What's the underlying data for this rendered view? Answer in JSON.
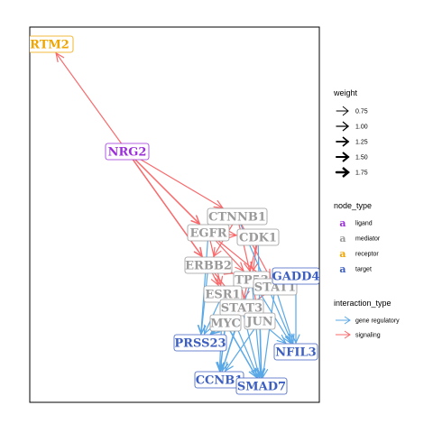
{
  "colors": {
    "ligand": "#9b30d9",
    "mediator": "#9a9a9a",
    "receptor": "#f0a500",
    "target": "#3d5fc0",
    "signaling": "#f8696b",
    "gene_regulatory": "#5aa8e6"
  },
  "nodes": [
    {
      "id": "RTM2",
      "label": "RTM2",
      "type": "receptor"
    },
    {
      "id": "NRG2",
      "label": "NRG2",
      "type": "ligand"
    },
    {
      "id": "CTNNB1",
      "label": "CTNNB1",
      "type": "mediator"
    },
    {
      "id": "EGFR",
      "label": "EGFR",
      "type": "mediator"
    },
    {
      "id": "CDK1",
      "label": "CDK1",
      "type": "mediator"
    },
    {
      "id": "ERBB2",
      "label": "ERBB2",
      "type": "mediator"
    },
    {
      "id": "TP53",
      "label": "TP53",
      "type": "mediator"
    },
    {
      "id": "STAT1",
      "label": "STAT1",
      "type": "mediator"
    },
    {
      "id": "GADD4",
      "label": "GADD4",
      "type": "target"
    },
    {
      "id": "ESR1",
      "label": "ESR1",
      "type": "mediator"
    },
    {
      "id": "STAT3",
      "label": "STAT3",
      "type": "mediator"
    },
    {
      "id": "MYC",
      "label": "MYC",
      "type": "mediator"
    },
    {
      "id": "JUN",
      "label": "JUN",
      "type": "mediator"
    },
    {
      "id": "PRSS23",
      "label": "PRSS23",
      "type": "target"
    },
    {
      "id": "NFIL3",
      "label": "NFIL3",
      "type": "target"
    },
    {
      "id": "CCNB1",
      "label": "CCNB1",
      "type": "target"
    },
    {
      "id": "SMAD7",
      "label": "SMAD7",
      "type": "target"
    }
  ],
  "edges": [
    {
      "from": "NRG2",
      "to": "RTM2",
      "type": "signaling",
      "weight": 1.0
    },
    {
      "from": "NRG2",
      "to": "EGFR",
      "type": "signaling",
      "weight": 1.25
    },
    {
      "from": "NRG2",
      "to": "ERBB2",
      "type": "signaling",
      "weight": 1.25
    },
    {
      "from": "NRG2",
      "to": "CTNNB1",
      "type": "signaling",
      "weight": 1.0
    },
    {
      "from": "EGFR",
      "to": "TP53",
      "type": "signaling",
      "weight": 1.0
    },
    {
      "from": "EGFR",
      "to": "STAT1",
      "type": "signaling",
      "weight": 1.0
    },
    {
      "from": "EGFR",
      "to": "ESR1",
      "type": "signaling",
      "weight": 1.0
    },
    {
      "from": "CTNNB1",
      "to": "TP53",
      "type": "signaling",
      "weight": 1.0
    },
    {
      "from": "CTNNB1",
      "to": "STAT1",
      "type": "signaling",
      "weight": 1.0
    },
    {
      "from": "CDK1",
      "to": "TP53",
      "type": "signaling",
      "weight": 1.0
    },
    {
      "from": "CDK1",
      "to": "STAT3",
      "type": "signaling",
      "weight": 1.0
    },
    {
      "from": "ERBB2",
      "to": "TP53",
      "type": "signaling",
      "weight": 1.0
    },
    {
      "from": "ERBB2",
      "to": "ESR1",
      "type": "signaling",
      "weight": 1.0
    },
    {
      "from": "ERBB2",
      "to": "STAT3",
      "type": "signaling",
      "weight": 1.0
    },
    {
      "from": "CTNNB1",
      "to": "ERBB2",
      "type": "signaling",
      "weight": 1.0
    },
    {
      "from": "EGFR",
      "to": "CDK1",
      "type": "signaling",
      "weight": 1.0
    },
    {
      "from": "TP53",
      "to": "JUN",
      "type": "signaling",
      "weight": 1.0
    },
    {
      "from": "STAT1",
      "to": "MYC",
      "type": "signaling",
      "weight": 1.0
    },
    {
      "from": "ERBB2",
      "to": "PRSS23",
      "type": "gene_regulatory",
      "weight": 1.0
    },
    {
      "from": "ESR1",
      "to": "PRSS23",
      "type": "gene_regulatory",
      "weight": 1.0
    },
    {
      "from": "MYC",
      "to": "PRSS23",
      "type": "gene_regulatory",
      "weight": 1.0
    },
    {
      "from": "MYC",
      "to": "CCNB1",
      "type": "gene_regulatory",
      "weight": 1.25
    },
    {
      "from": "MYC",
      "to": "SMAD7",
      "type": "gene_regulatory",
      "weight": 1.25
    },
    {
      "from": "JUN",
      "to": "CCNB1",
      "type": "gene_regulatory",
      "weight": 1.0
    },
    {
      "from": "JUN",
      "to": "SMAD7",
      "type": "gene_regulatory",
      "weight": 1.25
    },
    {
      "from": "JUN",
      "to": "NFIL3",
      "type": "gene_regulatory",
      "weight": 1.0
    },
    {
      "from": "STAT3",
      "to": "SMAD7",
      "type": "gene_regulatory",
      "weight": 1.0
    },
    {
      "from": "STAT3",
      "to": "CCNB1",
      "type": "gene_regulatory",
      "weight": 1.0
    },
    {
      "from": "STAT1",
      "to": "NFIL3",
      "type": "gene_regulatory",
      "weight": 1.0
    },
    {
      "from": "STAT1",
      "to": "SMAD7",
      "type": "gene_regulatory",
      "weight": 1.0
    },
    {
      "from": "TP53",
      "to": "SMAD7",
      "type": "gene_regulatory",
      "weight": 1.0
    },
    {
      "from": "TP53",
      "to": "CCNB1",
      "type": "gene_regulatory",
      "weight": 1.0
    },
    {
      "from": "GADD4",
      "to": "NFIL3",
      "type": "gene_regulatory",
      "weight": 1.0
    },
    {
      "from": "ESR1",
      "to": "CCNB1",
      "type": "gene_regulatory",
      "weight": 1.0
    },
    {
      "from": "ESR1",
      "to": "SMAD7",
      "type": "gene_regulatory",
      "weight": 1.0
    },
    {
      "from": "EGFR",
      "to": "PRSS23",
      "type": "gene_regulatory",
      "weight": 1.0
    },
    {
      "from": "CTNNB1",
      "to": "NFIL3",
      "type": "gene_regulatory",
      "weight": 1.0
    },
    {
      "from": "STAT3",
      "to": "PRSS23",
      "type": "gene_regulatory",
      "weight": 1.0
    },
    {
      "from": "TP53",
      "to": "NFIL3",
      "type": "gene_regulatory",
      "weight": 1.0
    },
    {
      "from": "CDK1",
      "to": "SMAD7",
      "type": "gene_regulatory",
      "weight": 1.0
    }
  ],
  "legend": {
    "weight": {
      "title": "weight",
      "items": [
        {
          "label": "0.75",
          "value": 0.75
        },
        {
          "label": "1.00",
          "value": 1.0
        },
        {
          "label": "1.25",
          "value": 1.25
        },
        {
          "label": "1.50",
          "value": 1.5
        },
        {
          "label": "1.75",
          "value": 1.75
        }
      ]
    },
    "node_type": {
      "title": "node_type",
      "key_glyph": "a",
      "items": [
        {
          "label": "ligand",
          "type": "ligand"
        },
        {
          "label": "mediator",
          "type": "mediator"
        },
        {
          "label": "receptor",
          "type": "receptor"
        },
        {
          "label": "target",
          "type": "target"
        }
      ]
    },
    "interaction_type": {
      "title": "interaction_type",
      "items": [
        {
          "label": "gene regulatory",
          "type": "gene_regulatory"
        },
        {
          "label": "signaling",
          "type": "signaling"
        }
      ]
    }
  }
}
